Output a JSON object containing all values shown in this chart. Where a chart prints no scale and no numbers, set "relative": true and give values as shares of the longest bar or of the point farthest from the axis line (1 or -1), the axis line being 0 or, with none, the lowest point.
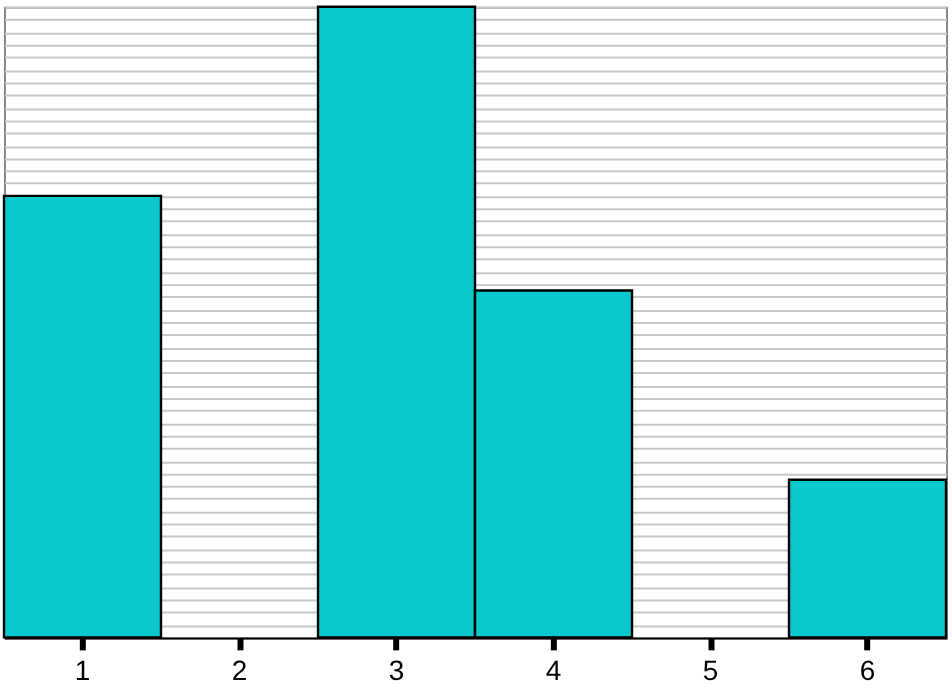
{
  "chart_data": {
    "type": "bar",
    "relative": true,
    "categories": [
      "1",
      "2",
      "3",
      "4",
      "5",
      "6"
    ],
    "series": [
      {
        "color": "#08c8cc",
        "values": [
          0.7,
          0,
          1,
          0.55,
          0,
          0.25
        ]
      }
    ],
    "grid": "y"
  }
}
